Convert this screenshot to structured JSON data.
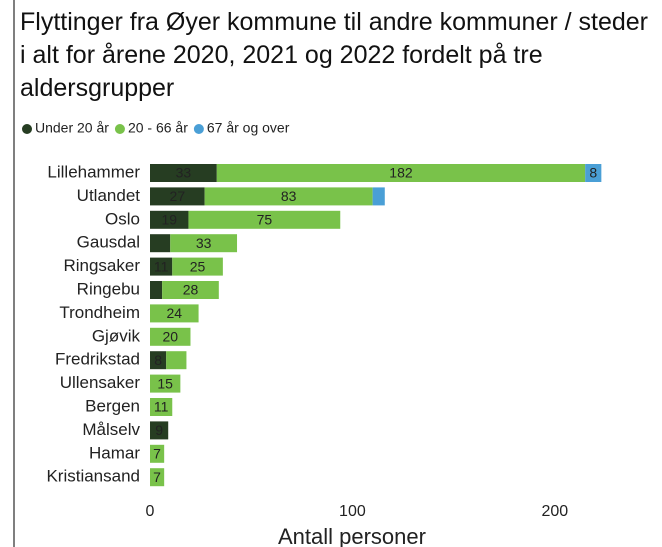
{
  "chart_data": {
    "type": "stacked-barh",
    "title": "Flyttinger fra Øyer kommune til andre kommuner / steder i alt for årene 2020, 2021 og 2022 fordelt på tre aldersgrupper",
    "categories": [
      "Lillehammer",
      "Utlandet",
      "Oslo",
      "Gausdal",
      "Ringsaker",
      "Ringebu",
      "Trondheim",
      "Gjøvik",
      "Fredrikstad",
      "Ullensaker",
      "Bergen",
      "Målselv",
      "Hamar",
      "Kristiansand"
    ],
    "series": [
      {
        "name": "Under 20 år",
        "color": "#263d22",
        "values": [
          33,
          27,
          19,
          10,
          11,
          6,
          null,
          null,
          8,
          null,
          null,
          9,
          null,
          null
        ],
        "value_labels": [
          "33",
          "27",
          "19",
          null,
          "11",
          null,
          null,
          null,
          "8",
          null,
          null,
          "9",
          null,
          null
        ]
      },
      {
        "name": "20 - 66 år",
        "color": "#79c24a",
        "values": [
          182,
          83,
          75,
          33,
          25,
          28,
          24,
          20,
          10,
          15,
          11,
          null,
          7,
          7
        ],
        "value_labels": [
          "182",
          "83",
          "75",
          "33",
          "25",
          "28",
          "24",
          "20",
          null,
          "15",
          "11",
          null,
          "7",
          "7"
        ]
      },
      {
        "name": "67 år og over",
        "color": "#4a9fd6",
        "values": [
          8,
          6,
          null,
          null,
          null,
          null,
          null,
          null,
          null,
          null,
          null,
          null,
          null,
          null
        ],
        "value_labels": [
          "8",
          null,
          null,
          null,
          null,
          null,
          null,
          null,
          null,
          null,
          null,
          null,
          null,
          null
        ]
      }
    ],
    "xlim": [
      0,
      250
    ],
    "xticks": [
      0,
      100,
      200
    ],
    "xlabel": "Antall personer",
    "legend": "top-left",
    "grid": false
  }
}
